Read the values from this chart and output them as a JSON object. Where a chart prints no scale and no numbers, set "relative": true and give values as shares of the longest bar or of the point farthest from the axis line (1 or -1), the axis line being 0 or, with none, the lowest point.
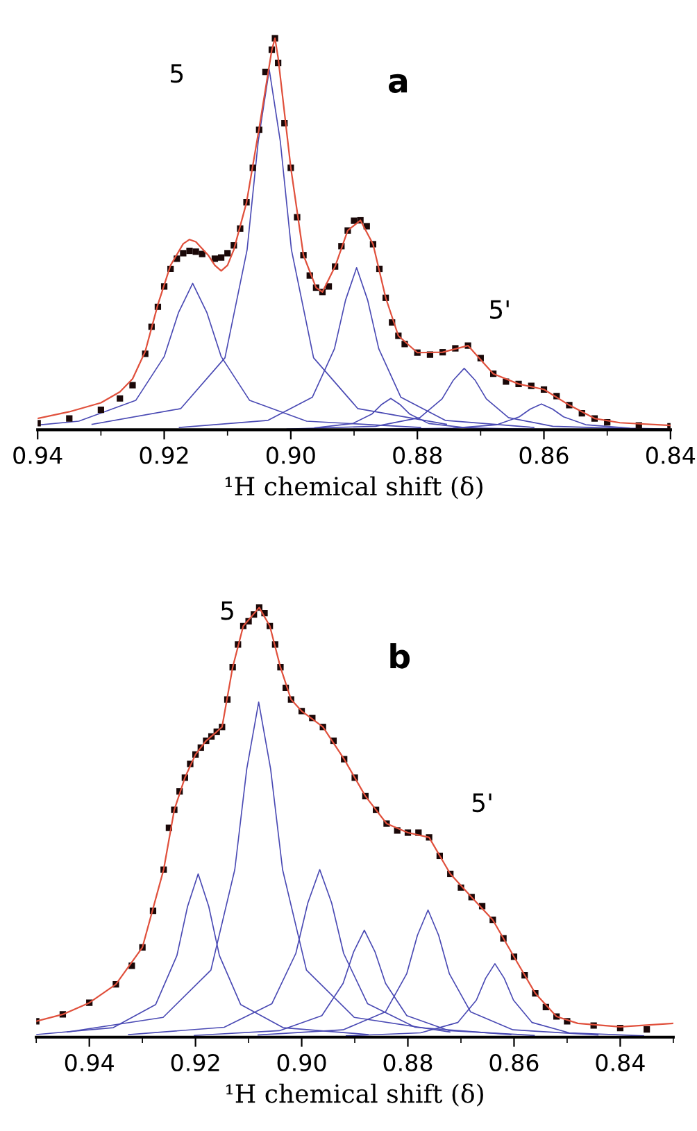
{
  "chart_data": [
    {
      "type": "line",
      "title": "a",
      "xlabel": "¹H chemical shift (δ)",
      "relative": true,
      "xlim": [
        0.94,
        0.84
      ],
      "xticks": [
        {
          "value": 0.94,
          "label": "0.94"
        },
        {
          "value": 0.92,
          "label": "0.92"
        },
        {
          "value": 0.9,
          "label": "0.90"
        },
        {
          "value": 0.88,
          "label": "0.88"
        },
        {
          "value": 0.86,
          "label": "0.86"
        },
        {
          "value": 0.84,
          "label": "0.84"
        }
      ],
      "annotations": [
        "5",
        "5'"
      ],
      "series": [
        {
          "type": "line",
          "color": "#4a4ab4",
          "x": [
            0.94,
            0.9335,
            0.9245,
            0.92,
            0.91775,
            0.9155,
            0.91325,
            0.911,
            0.9065,
            0.8975,
            0.8795
          ],
          "values": [
            0.012,
            0.022,
            0.075,
            0.187,
            0.299,
            0.374,
            0.299,
            0.187,
            0.075,
            0.022,
            0.006
          ]
        },
        {
          "type": "line",
          "color": "#4a4ab4",
          "x": [
            0.9314,
            0.9174,
            0.9104,
            0.9069,
            0.90515,
            0.9034,
            0.90165,
            0.8999,
            0.8964,
            0.8894,
            0.8754
          ],
          "values": [
            0.014,
            0.054,
            0.184,
            0.46,
            0.736,
            0.92,
            0.736,
            0.46,
            0.184,
            0.054,
            0.014
          ]
        },
        {
          "type": "line",
          "color": "#4a4ab4",
          "x": [
            0.9176,
            0.9036,
            0.8966,
            0.8931,
            0.89135,
            0.8896,
            0.88785,
            0.8861,
            0.8826,
            0.8756,
            0.8616
          ],
          "values": [
            0.006,
            0.024,
            0.083,
            0.207,
            0.331,
            0.414,
            0.331,
            0.207,
            0.083,
            0.024,
            0.006
          ]
        },
        {
          "type": "line",
          "color": "#4a4ab4",
          "x": [
            0.8962,
            0.8902,
            0.8872,
            0.8857,
            0.8842,
            0.8827,
            0.8812,
            0.8782,
            0.8722,
            0.8602
          ],
          "values": [
            0.005,
            0.016,
            0.04,
            0.064,
            0.08,
            0.064,
            0.04,
            0.016,
            0.005,
            0.001
          ]
        },
        {
          "type": "line",
          "color": "#4a4ab4",
          "x": [
            0.9006,
            0.8866,
            0.8796,
            0.8761,
            0.87435,
            0.8726,
            0.87085,
            0.8691,
            0.8656,
            0.8586,
            0.8446
          ],
          "values": [
            0.002,
            0.009,
            0.031,
            0.079,
            0.126,
            0.157,
            0.126,
            0.079,
            0.031,
            0.009,
            0.002
          ]
        },
        {
          "type": "line",
          "color": "#4a4ab4",
          "x": [
            0.8884,
            0.8744,
            0.8674,
            0.8639,
            0.86215,
            0.8604,
            0.85865,
            0.8569,
            0.8534,
            0.8464,
            0.84
          ],
          "values": [
            0.001,
            0.004,
            0.013,
            0.033,
            0.053,
            0.066,
            0.053,
            0.033,
            0.013,
            0.004,
            0.002
          ]
        },
        {
          "type": "scatter",
          "marker": "square",
          "color": "#1a0808",
          "x": [
            0.94,
            0.935,
            0.93,
            0.927,
            0.925,
            0.923,
            0.922,
            0.921,
            0.92,
            0.919,
            0.918,
            0.917,
            0.916,
            0.915,
            0.914,
            0.912,
            0.911,
            0.91,
            0.909,
            0.908,
            0.907,
            0.906,
            0.905,
            0.904,
            0.903,
            0.9025,
            0.902,
            0.901,
            0.9,
            0.899,
            0.898,
            0.897,
            0.896,
            0.895,
            0.894,
            0.893,
            0.892,
            0.891,
            0.89,
            0.889,
            0.888,
            0.887,
            0.886,
            0.885,
            0.884,
            0.883,
            0.882,
            0.88,
            0.878,
            0.876,
            0.874,
            0.872,
            0.87,
            0.868,
            0.866,
            0.864,
            0.862,
            0.86,
            0.858,
            0.856,
            0.854,
            0.852,
            0.85,
            0.845,
            0.84
          ],
          "values": [
            0.017,
            0.029,
            0.051,
            0.08,
            0.114,
            0.194,
            0.263,
            0.314,
            0.366,
            0.411,
            0.437,
            0.451,
            0.457,
            0.455,
            0.449,
            0.437,
            0.44,
            0.451,
            0.471,
            0.514,
            0.581,
            0.669,
            0.766,
            0.914,
            0.971,
            1.0,
            0.937,
            0.783,
            0.669,
            0.543,
            0.446,
            0.394,
            0.363,
            0.352,
            0.366,
            0.417,
            0.469,
            0.509,
            0.534,
            0.535,
            0.52,
            0.474,
            0.411,
            0.337,
            0.274,
            0.24,
            0.219,
            0.197,
            0.192,
            0.198,
            0.208,
            0.215,
            0.183,
            0.143,
            0.123,
            0.117,
            0.112,
            0.103,
            0.086,
            0.063,
            0.042,
            0.029,
            0.019,
            0.011,
            0.009
          ]
        },
        {
          "type": "line",
          "color": "#e0503c",
          "x": [
            0.94,
            0.935,
            0.93,
            0.927,
            0.925,
            0.923,
            0.921,
            0.919,
            0.917,
            0.916,
            0.915,
            0.913,
            0.912,
            0.911,
            0.91,
            0.909,
            0.907,
            0.905,
            0.903,
            0.9025,
            0.902,
            0.9,
            0.898,
            0.896,
            0.895,
            0.893,
            0.891,
            0.889,
            0.887,
            0.885,
            0.883,
            0.88,
            0.876,
            0.872,
            0.868,
            0.864,
            0.86,
            0.856,
            0.852,
            0.848,
            0.84
          ],
          "values": [
            0.029,
            0.046,
            0.069,
            0.097,
            0.13,
            0.2,
            0.32,
            0.42,
            0.475,
            0.486,
            0.48,
            0.445,
            0.42,
            0.406,
            0.42,
            0.46,
            0.58,
            0.77,
            0.97,
            1.0,
            0.95,
            0.67,
            0.446,
            0.363,
            0.352,
            0.417,
            0.509,
            0.535,
            0.474,
            0.337,
            0.24,
            0.197,
            0.198,
            0.215,
            0.143,
            0.117,
            0.103,
            0.063,
            0.029,
            0.018,
            0.011
          ]
        }
      ]
    },
    {
      "type": "line",
      "title": "b",
      "xlabel": "¹H chemical shift (δ)",
      "relative": true,
      "xlim": [
        0.95,
        0.83
      ],
      "xticks": [
        {
          "value": 0.94,
          "label": "0.94"
        },
        {
          "value": 0.92,
          "label": "0.92"
        },
        {
          "value": 0.9,
          "label": "0.90"
        },
        {
          "value": 0.88,
          "label": "0.88"
        },
        {
          "value": 0.86,
          "label": "0.86"
        },
        {
          "value": 0.84,
          "label": "0.84"
        }
      ],
      "annotations": [
        "5",
        "5'"
      ],
      "series": [
        {
          "type": "line",
          "color": "#4a4ab4",
          "x": [
            0.95,
            0.9355,
            0.9275,
            0.9235,
            0.9215,
            0.9195,
            0.9175,
            0.9155,
            0.9115,
            0.9035,
            0.8875
          ],
          "values": [
            0.006,
            0.022,
            0.076,
            0.19,
            0.304,
            0.38,
            0.304,
            0.19,
            0.076,
            0.022,
            0.006
          ]
        },
        {
          "type": "line",
          "color": "#4a4ab4",
          "x": [
            0.9441,
            0.9261,
            0.9171,
            0.9126,
            0.91035,
            0.9081,
            0.90585,
            0.9036,
            0.8991,
            0.8901,
            0.8721
          ],
          "values": [
            0.012,
            0.046,
            0.156,
            0.39,
            0.624,
            0.78,
            0.624,
            0.39,
            0.156,
            0.046,
            0.012
          ]
        },
        {
          "type": "line",
          "color": "#4a4ab4",
          "x": [
            0.9326,
            0.9146,
            0.9056,
            0.9011,
            0.89885,
            0.8966,
            0.89435,
            0.8921,
            0.8876,
            0.8786,
            0.8606
          ],
          "values": [
            0.006,
            0.023,
            0.078,
            0.195,
            0.312,
            0.39,
            0.312,
            0.195,
            0.078,
            0.023,
            0.006
          ]
        },
        {
          "type": "line",
          "color": "#4a4ab4",
          "x": [
            0.9202,
            0.9042,
            0.8962,
            0.8922,
            0.8902,
            0.8882,
            0.8862,
            0.8842,
            0.8802,
            0.8722,
            0.8562
          ],
          "values": [
            0.004,
            0.015,
            0.05,
            0.125,
            0.199,
            0.249,
            0.199,
            0.125,
            0.05,
            0.015,
            0.004
          ]
        },
        {
          "type": "line",
          "color": "#4a4ab4",
          "x": [
            0.9082,
            0.8922,
            0.8842,
            0.8802,
            0.8782,
            0.8762,
            0.8742,
            0.8722,
            0.8682,
            0.8602,
            0.8442
          ],
          "values": [
            0.005,
            0.017,
            0.059,
            0.148,
            0.237,
            0.296,
            0.237,
            0.148,
            0.059,
            0.017,
            0.005
          ]
        },
        {
          "type": "line",
          "color": "#4a4ab4",
          "x": [
            0.8916,
            0.8776,
            0.8706,
            0.8671,
            0.86535,
            0.8636,
            0.86185,
            0.8601,
            0.8566,
            0.8496,
            0.8356
          ],
          "values": [
            0.003,
            0.01,
            0.034,
            0.086,
            0.137,
            0.171,
            0.137,
            0.086,
            0.034,
            0.01,
            0.003
          ]
        },
        {
          "type": "scatter",
          "marker": "square",
          "color": "#1a0808",
          "x": [
            0.95,
            0.945,
            0.94,
            0.935,
            0.932,
            0.93,
            0.928,
            0.926,
            0.925,
            0.924,
            0.923,
            0.922,
            0.921,
            0.92,
            0.919,
            0.918,
            0.917,
            0.916,
            0.915,
            0.914,
            0.913,
            0.912,
            0.911,
            0.91,
            0.909,
            0.908,
            0.907,
            0.906,
            0.905,
            0.904,
            0.903,
            0.902,
            0.9,
            0.898,
            0.896,
            0.894,
            0.892,
            0.89,
            0.888,
            0.886,
            0.884,
            0.882,
            0.88,
            0.878,
            0.876,
            0.874,
            0.872,
            0.87,
            0.868,
            0.866,
            0.864,
            0.862,
            0.86,
            0.858,
            0.856,
            0.854,
            0.852,
            0.85,
            0.845,
            0.84,
            0.835
          ],
          "values": [
            0.037,
            0.053,
            0.08,
            0.123,
            0.166,
            0.209,
            0.294,
            0.39,
            0.487,
            0.529,
            0.572,
            0.604,
            0.636,
            0.658,
            0.674,
            0.69,
            0.7,
            0.711,
            0.722,
            0.786,
            0.861,
            0.914,
            0.957,
            0.968,
            0.984,
            1.0,
            0.987,
            0.957,
            0.914,
            0.861,
            0.813,
            0.786,
            0.759,
            0.743,
            0.722,
            0.69,
            0.647,
            0.604,
            0.561,
            0.529,
            0.497,
            0.481,
            0.476,
            0.476,
            0.465,
            0.422,
            0.38,
            0.348,
            0.326,
            0.305,
            0.273,
            0.23,
            0.187,
            0.144,
            0.102,
            0.07,
            0.048,
            0.037,
            0.027,
            0.021,
            0.018
          ]
        },
        {
          "color": "#e0503c",
          "x": [
            0.95,
            0.945,
            0.94,
            0.935,
            0.93,
            0.926,
            0.924,
            0.922,
            0.92,
            0.918,
            0.916,
            0.915,
            0.913,
            0.911,
            0.908,
            0.906,
            0.904,
            0.902,
            0.9,
            0.896,
            0.892,
            0.888,
            0.884,
            0.88,
            0.876,
            0.872,
            0.868,
            0.864,
            0.86,
            0.856,
            0.852,
            0.848,
            0.84,
            0.83
          ],
          "values": [
            0.037,
            0.053,
            0.08,
            0.123,
            0.209,
            0.39,
            0.529,
            0.604,
            0.658,
            0.69,
            0.711,
            0.722,
            0.861,
            0.957,
            1.0,
            0.957,
            0.861,
            0.786,
            0.759,
            0.722,
            0.647,
            0.561,
            0.497,
            0.476,
            0.465,
            0.38,
            0.326,
            0.273,
            0.187,
            0.102,
            0.048,
            0.032,
            0.024,
            0.032
          ]
        }
      ]
    }
  ]
}
